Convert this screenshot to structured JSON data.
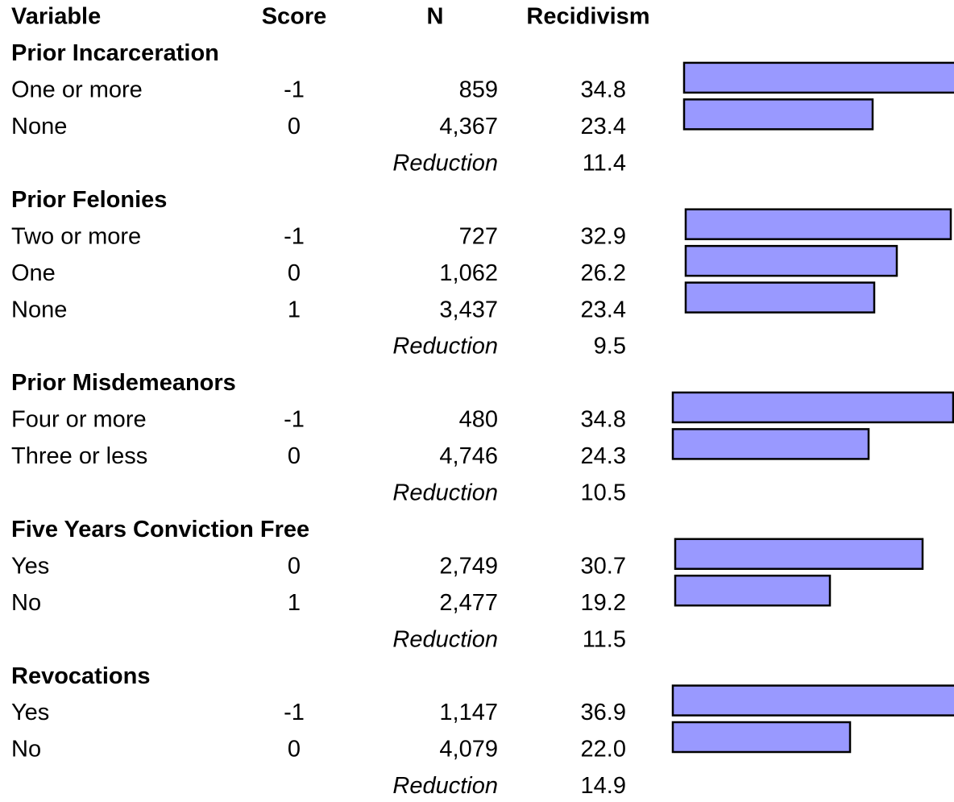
{
  "table": {
    "header": [
      "Variable",
      "Score",
      "N",
      "Recidivism"
    ],
    "groups": [
      {
        "title": "Prior Incarceration",
        "rows": [
          {
            "label": "One or more",
            "score": "-1",
            "n": "859",
            "recidivism": "34.8"
          },
          {
            "label": "None",
            "score": "0",
            "n": "4,367",
            "recidivism": "23.4"
          }
        ],
        "reduction_label": "Reduction",
        "reduction": "11.4"
      },
      {
        "title": "Prior Felonies",
        "rows": [
          {
            "label": "Two or more",
            "score": "-1",
            "n": "727",
            "recidivism": "32.9"
          },
          {
            "label": "One",
            "score": "0",
            "n": "1,062",
            "recidivism": "26.2"
          },
          {
            "label": "None",
            "score": "1",
            "n": "3,437",
            "recidivism": "23.4"
          }
        ],
        "reduction_label": "Reduction",
        "reduction": "9.5"
      },
      {
        "title": "Prior Misdemeanors",
        "rows": [
          {
            "label": "Four or more",
            "score": "-1",
            "n": "480",
            "recidivism": "34.8"
          },
          {
            "label": "Three or less",
            "score": "0",
            "n": "4,746",
            "recidivism": "24.3"
          }
        ],
        "reduction_label": "Reduction",
        "reduction": "10.5"
      },
      {
        "title": "Five Years Conviction Free",
        "rows": [
          {
            "label": "Yes",
            "score": "0",
            "n": "2,749",
            "recidivism": "30.7"
          },
          {
            "label": "No",
            "score": "1",
            "n": "2,477",
            "recidivism": "19.2"
          }
        ],
        "reduction_label": "Reduction",
        "reduction": "11.5"
      },
      {
        "title": "Revocations",
        "rows": [
          {
            "label": "Yes",
            "score": "-1",
            "n": "1,147",
            "recidivism": "36.9"
          },
          {
            "label": "No",
            "score": "0",
            "n": "4,079",
            "recidivism": "22.0"
          }
        ],
        "reduction_label": "Reduction",
        "reduction": "14.9"
      }
    ]
  }
}
